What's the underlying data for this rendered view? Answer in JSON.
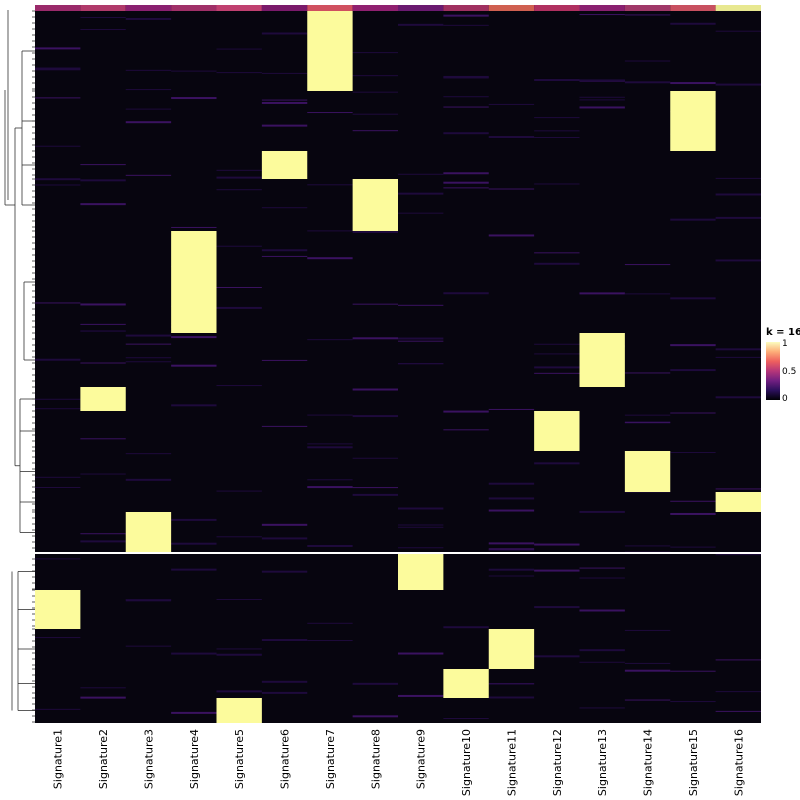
{
  "chart_data": {
    "type": "heatmap",
    "columns": [
      "Signature1",
      "Signature2",
      "Signature3",
      "Signature4",
      "Signature5",
      "Signature6",
      "Signature7",
      "Signature8",
      "Signature9",
      "Signature10",
      "Signature11",
      "Signature12",
      "Signature13",
      "Signature14",
      "Signature15",
      "Signature16"
    ],
    "value_range": [
      0,
      1
    ],
    "colormap": [
      "#000004",
      "#2c105c",
      "#711f81",
      "#b63679",
      "#ee605e",
      "#fdae78",
      "#fcfdbf"
    ],
    "background_color": "#07050f",
    "high_color": "#fcfb9c",
    "legend": {
      "title": "k = 16",
      "ticks": [
        "0",
        "0.5",
        "1"
      ],
      "position": "right"
    },
    "row_split_count": 2,
    "row_clusters_top_to_bottom": [
      {
        "signature": "Signature7",
        "value": 1
      },
      {
        "signature": "Signature15",
        "value": 1
      },
      {
        "signature": "Signature6",
        "value": 1
      },
      {
        "signature": "Signature8",
        "value": 1
      },
      {
        "signature": "Signature4",
        "value": 1
      },
      {
        "signature": "Signature13",
        "value": 1
      },
      {
        "signature": "Signature2",
        "value": 1
      },
      {
        "signature": "Signature12",
        "value": 1
      },
      {
        "signature": "Signature14",
        "value": 1
      },
      {
        "signature": "Signature16",
        "value": 1
      },
      {
        "signature": "Signature3",
        "value": 1
      },
      {
        "signature": "Signature9",
        "value": 1
      },
      {
        "signature": "Signature1",
        "value": 1
      },
      {
        "signature": "Signature11",
        "value": 1
      },
      {
        "signature": "Signature10",
        "value": 1
      },
      {
        "signature": "Signature5",
        "value": 1
      }
    ],
    "dendrogram": "left"
  }
}
